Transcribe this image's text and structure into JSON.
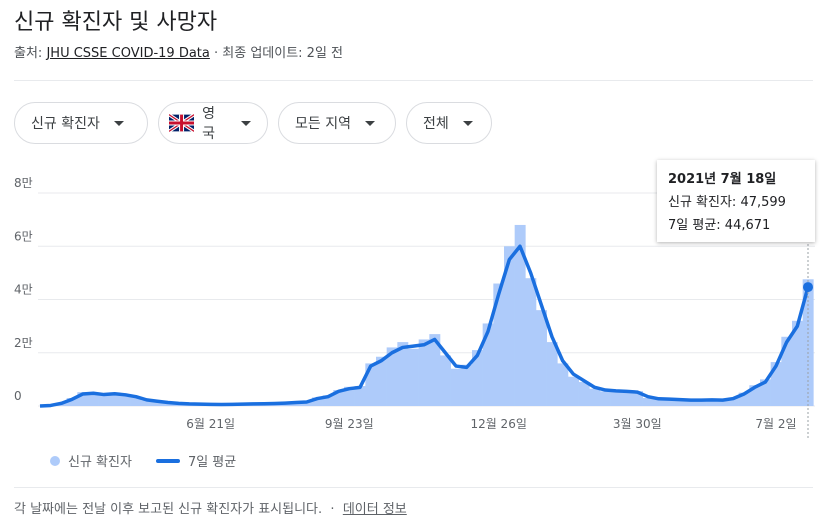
{
  "header": {
    "title": "신규 확진자 및 사망자",
    "source_label": "출처:",
    "source_link": "JHU CSSE COVID-19 Data",
    "updated": "· 최종 업데이트: 2일 전"
  },
  "filters": [
    "신규 확진자",
    "영국",
    "모든 지역",
    "전체"
  ],
  "tooltip": {
    "date": "2021년 7월 18일",
    "lines": [
      "신규 확진자: 47,599",
      "7일 평균: 44,671"
    ]
  },
  "footer": {
    "note": "각 날짜에는 전날 이후 보고된 신규 확진자가 표시됩니다.",
    "link": "데이터 정보"
  },
  "chart_data": {
    "type": "combo",
    "categories": [
      null,
      null,
      null,
      null,
      null,
      null,
      null,
      null,
      null,
      null,
      null,
      null,
      null,
      null,
      null,
      null,
      "6월 21일",
      null,
      null,
      null,
      null,
      null,
      null,
      null,
      null,
      null,
      null,
      null,
      null,
      "9월 23일",
      null,
      null,
      null,
      null,
      null,
      null,
      null,
      null,
      null,
      null,
      null,
      null,
      null,
      "12월 26일",
      null,
      null,
      null,
      null,
      null,
      null,
      null,
      null,
      null,
      null,
      null,
      null,
      "3월 30일",
      null,
      null,
      null,
      null,
      null,
      null,
      null,
      null,
      null,
      null,
      null,
      null,
      "7월 2일",
      null,
      null,
      null
    ],
    "series": [
      {
        "name": "신규 확진자",
        "kind": "bar",
        "color": "#aecbfa",
        "values": [
          0,
          300,
          1200,
          3000,
          5200,
          5000,
          4000,
          5100,
          4500,
          3300,
          2100,
          1900,
          1200,
          900,
          850,
          650,
          550,
          600,
          700,
          750,
          900,
          800,
          1000,
          1200,
          1400,
          1700,
          3200,
          4000,
          6000,
          7200,
          7500,
          16000,
          18500,
          22000,
          24000,
          21500,
          25000,
          27000,
          19000,
          14000,
          15500,
          21000,
          31000,
          46000,
          60000,
          68000,
          48000,
          36000,
          24000,
          16000,
          11000,
          9000,
          6500,
          5500,
          5800,
          5000,
          5600,
          3000,
          2600,
          2800,
          2200,
          2100,
          2300,
          2400,
          2000,
          3200,
          5000,
          7800,
          10000,
          16500,
          26000,
          32000,
          47599
        ]
      },
      {
        "name": "7일 평균",
        "kind": "line",
        "color": "#1a6fdf",
        "values": [
          0,
          200,
          1000,
          2500,
          4500,
          4800,
          4300,
          4600,
          4200,
          3500,
          2300,
          1800,
          1300,
          1000,
          800,
          700,
          600,
          550,
          600,
          700,
          800,
          850,
          950,
          1100,
          1300,
          1500,
          2800,
          3500,
          5500,
          6500,
          7000,
          15000,
          17000,
          20000,
          22000,
          22500,
          23000,
          25000,
          20000,
          15000,
          14500,
          19000,
          28000,
          42000,
          55000,
          60000,
          50000,
          38000,
          26000,
          17000,
          12000,
          9500,
          7000,
          6000,
          5700,
          5500,
          5200,
          3500,
          2700,
          2600,
          2400,
          2200,
          2200,
          2300,
          2200,
          2800,
          4500,
          7000,
          9000,
          15000,
          24000,
          30000,
          44671
        ]
      }
    ],
    "ylim": [
      0,
      80000
    ],
    "yticks": [
      0,
      {
        "value": 20000,
        "label": "2만"
      },
      {
        "value": 40000,
        "label": "4만"
      },
      {
        "value": 60000,
        "label": "6만"
      },
      {
        "value": 80000,
        "label": "8만"
      }
    ],
    "grid": true
  }
}
